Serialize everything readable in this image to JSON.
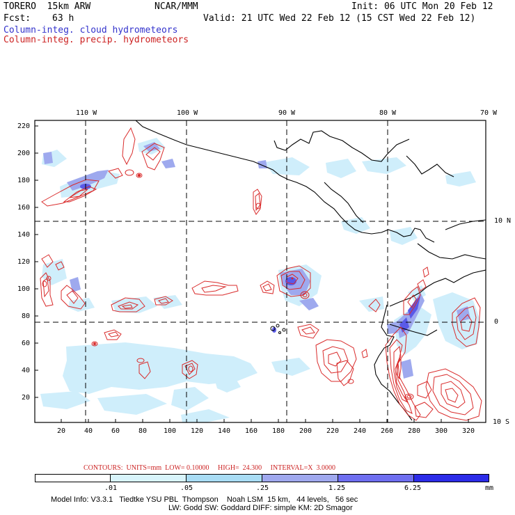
{
  "header": {
    "model": "TORERO  15km ARW",
    "org": "NCAR/MMM",
    "init": "Init: 06 UTC Mon 20 Feb 12",
    "fcst_label": "Fcst:",
    "fcst_value": "63 h",
    "valid": "Valid: 21 UTC Wed 22 Feb 12 (15 CST Wed 22 Feb 12)",
    "field1": "Column-integ. cloud hydrometeors",
    "field2": "Column-integ. precip. hydrometeors",
    "field1_color": "#3333cc",
    "field2_color": "#cc2222"
  },
  "map": {
    "lon_labels": [
      "110 W",
      "100 W",
      "90 W",
      "80 W",
      "70 W"
    ],
    "lat_labels": [
      "10 N",
      "0",
      "10 S"
    ],
    "y_ticks": [
      "220",
      "200",
      "180",
      "160",
      "140",
      "120",
      "100",
      "80",
      "60",
      "40",
      "20"
    ],
    "x_ticks": [
      "20",
      "40",
      "60",
      "80",
      "100",
      "120",
      "140",
      "160",
      "180",
      "200",
      "220",
      "240",
      "260",
      "280",
      "300",
      "320"
    ]
  },
  "contours": {
    "label": "CONTOURS:  UNITS=mm  LOW= 0.10000     HIGH=  24.300     INTERVAL=X  3.0000"
  },
  "colorbar": {
    "labels": [
      ".01",
      ".05",
      ".25",
      "1.25",
      "6.25"
    ],
    "unit": "mm",
    "colors": [
      "#ffffff",
      "#d8f4fb",
      "#a8dcf4",
      "#9fa8ee",
      "#6e6ef0",
      "#4848ec",
      "#2222e8"
    ]
  },
  "footer": {
    "line1": "Model Info: V3.3.1   Tiedtke YSU PBL  Thompson    Noah LSM  15 km,   44 levels,   56 sec",
    "line2": "LW: Godd SW: Goddard DIFF: simple KM: 2D Smagor"
  }
}
